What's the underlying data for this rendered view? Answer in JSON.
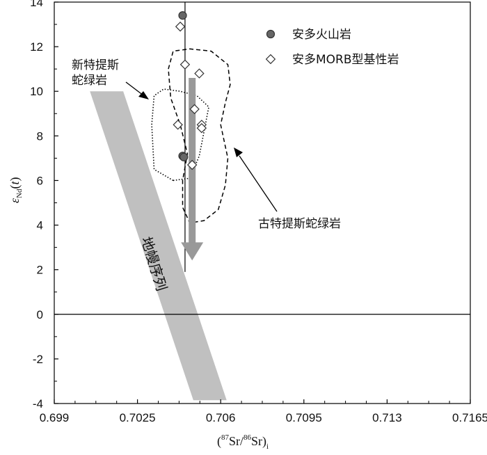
{
  "chart_data": {
    "type": "scatter",
    "x_axis": {
      "label_parts": {
        "open": "(",
        "sup1": "87",
        "sr1": "Sr/",
        "sup2": "86",
        "sr2": "Sr)",
        "sub": "i"
      },
      "ticks": [
        0.699,
        0.7025,
        0.706,
        0.7095,
        0.713,
        0.7165
      ],
      "tick_labels": [
        "0.699",
        "0.7025",
        "0.706",
        "0.7095",
        "0.713",
        "0.7165"
      ],
      "range": [
        0.699,
        0.7165
      ]
    },
    "y_axis": {
      "label_parts": {
        "eps": "ε",
        "sub": "Nd",
        "open": "(",
        "t": "t",
        "close": ")"
      },
      "ticks": [
        -4,
        -2,
        0,
        2,
        4,
        6,
        8,
        10,
        12,
        14
      ],
      "tick_labels": [
        "-4",
        "-2",
        "0",
        "2",
        "4",
        "6",
        "8",
        "10",
        "12",
        "14"
      ],
      "range": [
        -4,
        14
      ]
    },
    "reference_lines": {
      "y": 0,
      "x": 0.7045
    },
    "series": [
      {
        "name": "安多火山岩",
        "marker": "circle",
        "color": "#666666",
        "points": [
          [
            0.7044,
            13.4
          ],
          [
            0.7044,
            7.1
          ],
          [
            0.70445,
            7.05
          ]
        ]
      },
      {
        "name": "安多MORB型基性岩",
        "marker": "diamond",
        "color": "#ffffff",
        "points": [
          [
            0.7043,
            12.9
          ],
          [
            0.7045,
            11.2
          ],
          [
            0.7051,
            10.8
          ],
          [
            0.7049,
            9.2
          ],
          [
            0.7042,
            8.5
          ],
          [
            0.7052,
            8.5
          ],
          [
            0.7052,
            8.35
          ],
          [
            0.7048,
            6.7
          ]
        ]
      }
    ],
    "legend": {
      "position": "top-right"
    },
    "annotations": {
      "neo_tethys": {
        "line1": "新特提斯",
        "line2": "蛇绿岩"
      },
      "paleo_tethys": "古特提斯蛇绿岩",
      "mantle_array": "地幔序列"
    },
    "regions": {
      "mantle_band": [
        [
          0.7005,
          10
        ],
        [
          0.7019,
          10
        ],
        [
          0.70625,
          -3.85
        ],
        [
          0.70485,
          -3.85
        ]
      ],
      "neo_tethys_outline": [
        [
          0.704,
          6.0
        ],
        [
          0.7032,
          6.5
        ],
        [
          0.7031,
          8.5
        ],
        [
          0.7032,
          9.8
        ],
        [
          0.7036,
          10.1
        ],
        [
          0.7043,
          10.0
        ],
        [
          0.705,
          9.8
        ],
        [
          0.7055,
          9.3
        ],
        [
          0.7053,
          8.2
        ],
        [
          0.7051,
          7.1
        ],
        [
          0.7047,
          6.1
        ],
        [
          0.704,
          6.0
        ]
      ],
      "paleo_tethys_outline": [
        [
          0.7038,
          11.0
        ],
        [
          0.704,
          11.8
        ],
        [
          0.7047,
          11.9
        ],
        [
          0.7056,
          11.8
        ],
        [
          0.7063,
          11.2
        ],
        [
          0.7064,
          10.3
        ],
        [
          0.7062,
          9.5
        ],
        [
          0.706,
          8.5
        ],
        [
          0.7063,
          7.0
        ],
        [
          0.7062,
          5.8
        ],
        [
          0.7059,
          4.7
        ],
        [
          0.7053,
          4.2
        ],
        [
          0.7047,
          4.1
        ],
        [
          0.7044,
          4.8
        ],
        [
          0.7044,
          6.0
        ],
        [
          0.7046,
          7.2
        ],
        [
          0.7043,
          8.5
        ],
        [
          0.7039,
          9.7
        ],
        [
          0.7038,
          11.0
        ]
      ],
      "trend_arrow": {
        "from": [
          0.7048,
          10.6
        ],
        "to": [
          0.7048,
          2.6
        ]
      }
    },
    "colors": {
      "mantle_band": "#c0c0c0",
      "trend_arrow": "#999999",
      "line": "#000000"
    }
  }
}
